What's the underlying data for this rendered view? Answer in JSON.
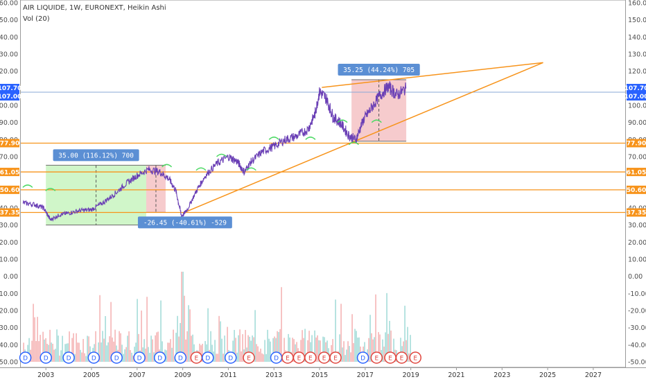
{
  "header": {
    "title": "AIR LIQUIDE, 1W, EURONEXT, Heikin Ashi",
    "volume_label": "Vol (20)"
  },
  "colors": {
    "price_line": "#6a3fb5",
    "horizontal_lines": "#f7931a",
    "trend_lines": "#f7931a",
    "current_price_line": "#8aa9d6",
    "badge_blue": "#2962ff",
    "badge_orange": "#f7931a",
    "measure_label": "#5b8fd4",
    "up_zone": "#c8f5c0",
    "down_zone": "#f5c2c4",
    "vol_up": "#8fd3d0",
    "vol_down": "#f3a1a3",
    "dividend": "#2962ff",
    "earnings": "#e0443c",
    "marker_green": "#4cd964"
  },
  "chart_data": {
    "type": "line",
    "title": "AIR LIQUIDE, 1W, EURONEXT, Heikin Ashi",
    "indicator": "Vol (20)",
    "x": [
      2002.0,
      2002.5,
      2002.9,
      2003.2,
      2003.6,
      2004.0,
      2004.5,
      2005.0,
      2005.5,
      2006.0,
      2006.5,
      2007.0,
      2007.5,
      2008.0,
      2008.4,
      2008.7,
      2008.95,
      2009.2,
      2009.6,
      2010.0,
      2010.5,
      2011.0,
      2011.4,
      2011.7,
      2012.0,
      2012.5,
      2013.0,
      2013.5,
      2014.0,
      2014.5,
      2014.8,
      2015.0,
      2015.3,
      2015.6,
      2015.9,
      2016.3,
      2016.6,
      2016.9,
      2017.2,
      2017.6,
      2018.0,
      2018.4,
      2018.8
    ],
    "values": [
      43.0,
      42.0,
      40.0,
      33.0,
      36.0,
      37.0,
      38.5,
      39.0,
      43.0,
      48.0,
      54.0,
      59.0,
      62.5,
      61.0,
      57.0,
      50.0,
      35.0,
      39.0,
      50.0,
      59.0,
      66.0,
      70.0,
      67.0,
      61.0,
      67.0,
      73.0,
      76.0,
      80.0,
      82.0,
      86.0,
      95.0,
      108.0,
      104.0,
      93.0,
      90.0,
      82.0,
      80.0,
      91.0,
      97.0,
      105.0,
      111.0,
      106.0,
      110.0
    ],
    "x_axis": {
      "tick_labels": [
        "2003",
        "2005",
        "2007",
        "2009",
        "2011",
        "2013",
        "2015",
        "2017",
        "2019",
        "2021",
        "2023",
        "2025",
        "2027"
      ],
      "range": [
        2001.9,
        2028.4
      ]
    },
    "y_axis": {
      "tick_labels": [
        "160.00",
        "150.00",
        "140.00",
        "130.00",
        "120.00",
        "110.00",
        "100.00",
        "90.00",
        "80.00",
        "70.00",
        "60.00",
        "50.00",
        "40.00",
        "30.00",
        "20.00",
        "10.00",
        "0.00",
        "-10.00",
        "-20.00",
        "-30.00",
        "-40.00",
        "-50.00"
      ],
      "range": [
        -50,
        160
      ],
      "position": "both"
    },
    "price_badges": [
      {
        "label": "107.70",
        "value": 107.7,
        "color": "blue"
      },
      {
        "label": "107.00",
        "value": 107.0,
        "color": "blue"
      },
      {
        "label": "77.90",
        "value": 77.9,
        "color": "orange"
      },
      {
        "label": "61.05",
        "value": 61.05,
        "color": "orange"
      },
      {
        "label": "50.60",
        "value": 50.6,
        "color": "orange"
      },
      {
        "label": "37.35",
        "value": 37.35,
        "color": "orange"
      }
    ],
    "horizontal_levels": [
      77.9,
      61.05,
      50.6,
      37.35
    ],
    "current_price": 107.7,
    "trend_lines": [
      {
        "from": [
          2009.0,
          37.0
        ],
        "to": [
          2024.8,
          125.0
        ]
      },
      {
        "from": [
          2015.1,
          110.5
        ],
        "to": [
          2024.8,
          125.0
        ]
      }
    ],
    "measurements": [
      {
        "label": "35.00 (116.12%) 700",
        "x_from": 2003.0,
        "x_to": 2007.4,
        "y_from": 30.0,
        "y_to": 65.0,
        "direction": "up"
      },
      {
        "label": "-26.45 (-40.61%) -529",
        "x_from": 2007.4,
        "x_to": 2008.25,
        "y_from": 65.0,
        "y_to": 37.4,
        "direction": "down"
      },
      {
        "label": "35.25 (44.24%) 705",
        "x_from": 2016.4,
        "x_to": 2018.8,
        "y_from": 79.0,
        "y_to": 115.0,
        "direction": "up"
      }
    ],
    "events": [
      {
        "type": "D",
        "x": 2002.1
      },
      {
        "type": "D",
        "x": 2003.0
      },
      {
        "type": "D",
        "x": 2004.0
      },
      {
        "type": "D",
        "x": 2005.1
      },
      {
        "type": "D",
        "x": 2006.1
      },
      {
        "type": "D",
        "x": 2007.1
      },
      {
        "type": "D",
        "x": 2008.0
      },
      {
        "type": "D",
        "x": 2008.9
      },
      {
        "type": "E",
        "x": 2009.6
      },
      {
        "type": "D",
        "x": 2010.1
      },
      {
        "type": "D",
        "x": 2011.1
      },
      {
        "type": "E",
        "x": 2011.9
      },
      {
        "type": "D",
        "x": 2013.1
      },
      {
        "type": "E",
        "x": 2013.6
      },
      {
        "type": "E",
        "x": 2014.1
      },
      {
        "type": "E",
        "x": 2014.6
      },
      {
        "type": "E",
        "x": 2015.2
      },
      {
        "type": "E",
        "x": 2015.7
      },
      {
        "type": "D",
        "x": 2016.9
      },
      {
        "type": "E",
        "x": 2017.5
      },
      {
        "type": "E",
        "x": 2018.1
      },
      {
        "type": "E",
        "x": 2018.6
      },
      {
        "type": "E",
        "x": 2019.2
      }
    ]
  }
}
